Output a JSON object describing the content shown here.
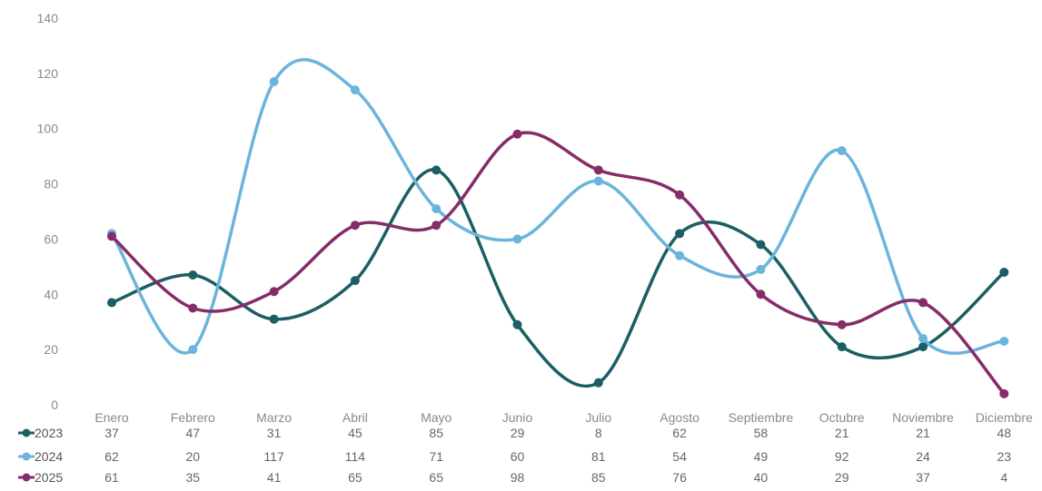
{
  "chart_data": {
    "type": "line",
    "title": "",
    "xlabel": "",
    "ylabel": "",
    "ylim": [
      0,
      140
    ],
    "yticks": [
      0,
      20,
      40,
      60,
      80,
      100,
      120,
      140
    ],
    "grid": false,
    "legend": "data-table-left",
    "categories": [
      "Enero",
      "Febrero",
      "Marzo",
      "Abril",
      "Mayo",
      "Junio",
      "Julio",
      "Agosto",
      "Septiembre",
      "Octubre",
      "Noviembre",
      "Diciembre"
    ],
    "series": [
      {
        "name": "2023",
        "color": "#1b5e63",
        "values": [
          37,
          47,
          31,
          45,
          85,
          29,
          8,
          62,
          58,
          21,
          21,
          48
        ]
      },
      {
        "name": "2024",
        "color": "#6bb4dc",
        "values": [
          62,
          20,
          117,
          114,
          71,
          60,
          81,
          54,
          49,
          92,
          24,
          23
        ]
      },
      {
        "name": "2025",
        "color": "#862c68",
        "values": [
          61,
          35,
          41,
          65,
          65,
          98,
          85,
          76,
          40,
          29,
          37,
          4
        ]
      }
    ]
  }
}
